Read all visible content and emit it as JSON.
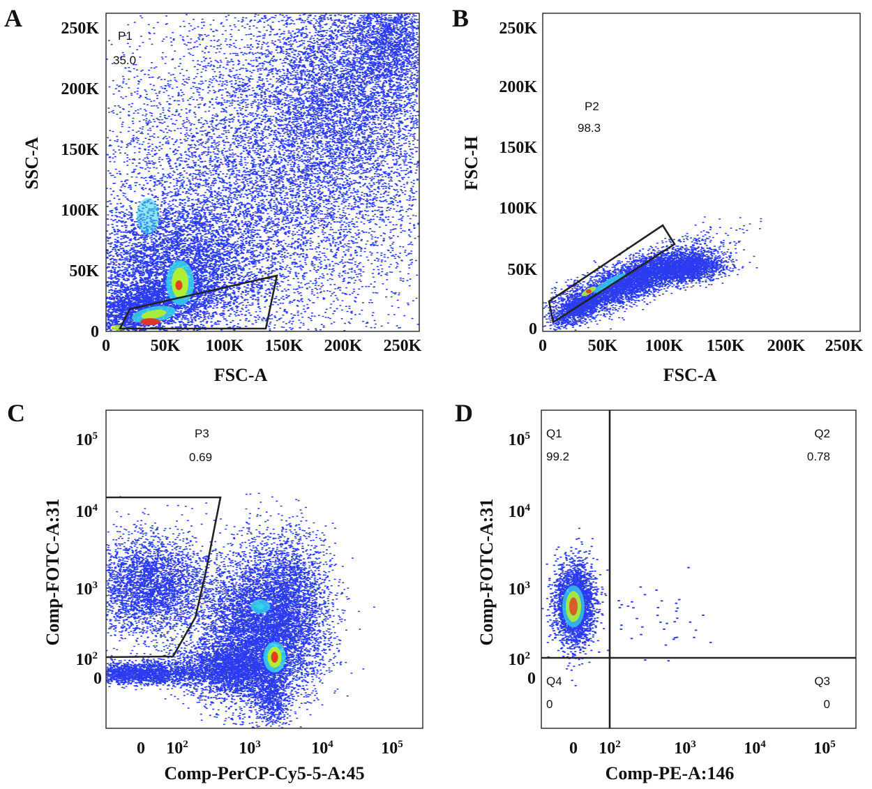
{
  "chart_data": [
    {
      "panel": "A",
      "type": "scatter",
      "xlabel": "FSC-A",
      "ylabel": "SSC-A",
      "xscale": "linear",
      "yscale": "linear",
      "xlim": [
        0,
        262144
      ],
      "ylim": [
        0,
        262144
      ],
      "xticks": [
        "0",
        "50K",
        "100K",
        "150K",
        "200K",
        "250K"
      ],
      "yticks": [
        "0",
        "50K",
        "100K",
        "150K",
        "200K",
        "250K"
      ],
      "gates": [
        {
          "name": "P1",
          "percent": "35.0"
        }
      ],
      "hotspots": [
        {
          "x": 62000,
          "y": 40000,
          "level": "high"
        },
        {
          "x": 37000,
          "y": 8000,
          "level": "peak"
        },
        {
          "x": 40000,
          "y": 14000,
          "level": "high"
        },
        {
          "x": 35000,
          "y": 95000,
          "level": "medium"
        }
      ]
    },
    {
      "panel": "B",
      "type": "scatter",
      "xlabel": "FSC-A",
      "ylabel": "FSC-H",
      "xscale": "linear",
      "yscale": "linear",
      "xlim": [
        0,
        262144
      ],
      "ylim": [
        0,
        262144
      ],
      "xticks": [
        "0",
        "50K",
        "100K",
        "150K",
        "200K",
        "250K"
      ],
      "yticks": [
        "0",
        "50K",
        "100K",
        "150K",
        "200K",
        "250K"
      ],
      "gates": [
        {
          "name": "P2",
          "percent": "98.3"
        }
      ],
      "hotspots": [
        {
          "x": 38000,
          "y": 33000,
          "level": "peak"
        },
        {
          "x": 55000,
          "y": 40000,
          "level": "high"
        }
      ]
    },
    {
      "panel": "C",
      "type": "scatter",
      "xlabel": "Comp-PerCP-Cy5-5-A:45",
      "ylabel": "Comp-FOTC-A:31",
      "xscale": "biexponential",
      "yscale": "biexponential",
      "xticks": [
        {
          "base": "0",
          "exp": ""
        },
        {
          "base": "10",
          "exp": "2"
        },
        {
          "base": "10",
          "exp": "3"
        },
        {
          "base": "10",
          "exp": "4"
        },
        {
          "base": "10",
          "exp": "5"
        }
      ],
      "yticks": [
        {
          "base": "0",
          "exp": ""
        },
        {
          "base": "10",
          "exp": "2"
        },
        {
          "base": "10",
          "exp": "3"
        },
        {
          "base": "10",
          "exp": "4"
        },
        {
          "base": "10",
          "exp": "5"
        }
      ],
      "gates": [
        {
          "name": "P3",
          "percent": "0.69"
        }
      ],
      "hotspots": [
        {
          "x": 2200,
          "y": 100,
          "level": "peak"
        },
        {
          "x": 1400,
          "y": 500,
          "level": "medium"
        }
      ]
    },
    {
      "panel": "D",
      "type": "scatter",
      "xlabel": "Comp-PE-A:146",
      "ylabel": "Comp-FOTC-A:31",
      "xscale": "biexponential",
      "yscale": "biexponential",
      "xticks": [
        {
          "base": "0",
          "exp": ""
        },
        {
          "base": "10",
          "exp": "2"
        },
        {
          "base": "10",
          "exp": "3"
        },
        {
          "base": "10",
          "exp": "4"
        },
        {
          "base": "10",
          "exp": "5"
        }
      ],
      "yticks": [
        {
          "base": "0",
          "exp": ""
        },
        {
          "base": "10",
          "exp": "2"
        },
        {
          "base": "10",
          "exp": "3"
        },
        {
          "base": "10",
          "exp": "4"
        },
        {
          "base": "10",
          "exp": "5"
        }
      ],
      "quadrant_split": {
        "x": 100,
        "y": 100
      },
      "quadrants": [
        {
          "name": "Q1",
          "percent": "99.2"
        },
        {
          "name": "Q2",
          "percent": "0.78"
        },
        {
          "name": "Q3",
          "percent": "0"
        },
        {
          "name": "Q4",
          "percent": "0"
        }
      ],
      "hotspots": [
        {
          "x": 0,
          "y": 500,
          "level": "peak"
        }
      ]
    }
  ],
  "colors": {
    "low": "#2b3cf0",
    "medium": "#35d3e8",
    "high": "#b6f02a",
    "peak": "#e8321c",
    "gate": "#222222",
    "frame": "#222222"
  }
}
